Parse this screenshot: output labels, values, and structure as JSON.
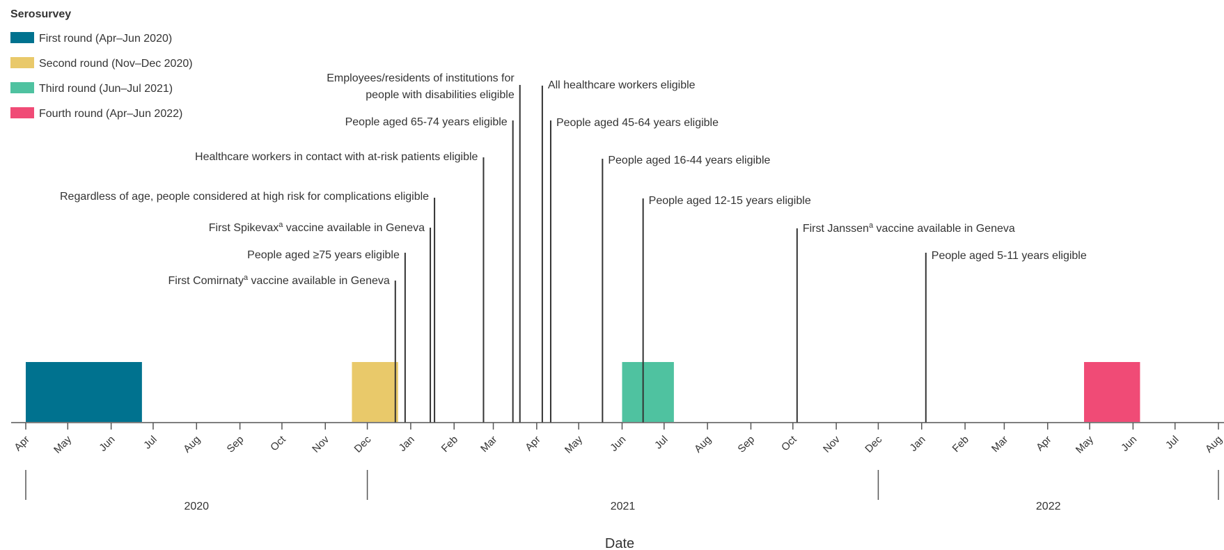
{
  "chart_data": {
    "type": "timeline",
    "xlabel": "Date",
    "legend": {
      "title": "Serosurvey",
      "placement": "top-left",
      "items": [
        {
          "label": "First round (Apr–Jun 2020)",
          "color": "#00728f"
        },
        {
          "label": "Second round (Nov–Dec 2020)",
          "color": "#e9c96a"
        },
        {
          "label": "Third round (Jun–Jul 2021)",
          "color": "#4fc2a0"
        },
        {
          "label": "Fourth round (Apr–Jun 2022)",
          "color": "#f04b76"
        }
      ]
    },
    "x_range": [
      "2020-04-01",
      "2022-08-01"
    ],
    "month_ticks": [
      {
        "date": "2020-04-01",
        "label": "Apr"
      },
      {
        "date": "2020-05-01",
        "label": "May"
      },
      {
        "date": "2020-06-01",
        "label": "Jun"
      },
      {
        "date": "2020-07-01",
        "label": "Jul"
      },
      {
        "date": "2020-08-01",
        "label": "Aug"
      },
      {
        "date": "2020-09-01",
        "label": "Sep"
      },
      {
        "date": "2020-10-01",
        "label": "Oct"
      },
      {
        "date": "2020-11-01",
        "label": "Nov"
      },
      {
        "date": "2020-12-01",
        "label": "Dec"
      },
      {
        "date": "2021-01-01",
        "label": "Jan"
      },
      {
        "date": "2021-02-01",
        "label": "Feb"
      },
      {
        "date": "2021-03-01",
        "label": "Mar"
      },
      {
        "date": "2021-04-01",
        "label": "Apr"
      },
      {
        "date": "2021-05-01",
        "label": "May"
      },
      {
        "date": "2021-06-01",
        "label": "Jun"
      },
      {
        "date": "2021-07-01",
        "label": "Jul"
      },
      {
        "date": "2021-08-01",
        "label": "Aug"
      },
      {
        "date": "2021-09-01",
        "label": "Sep"
      },
      {
        "date": "2021-10-01",
        "label": "Oct"
      },
      {
        "date": "2021-11-01",
        "label": "Nov"
      },
      {
        "date": "2021-12-01",
        "label": "Dec"
      },
      {
        "date": "2022-01-01",
        "label": "Jan"
      },
      {
        "date": "2022-02-01",
        "label": "Feb"
      },
      {
        "date": "2022-03-01",
        "label": "Mar"
      },
      {
        "date": "2022-04-01",
        "label": "Apr"
      },
      {
        "date": "2022-05-01",
        "label": "May"
      },
      {
        "date": "2022-06-01",
        "label": "Jun"
      },
      {
        "date": "2022-07-01",
        "label": "Jul"
      },
      {
        "date": "2022-08-01",
        "label": "Aug"
      }
    ],
    "years": [
      {
        "label": "2020",
        "start": "2020-04-01",
        "end": "2020-12-01"
      },
      {
        "label": "2021",
        "start": "2020-12-01",
        "end": "2021-12-01"
      },
      {
        "label": "2022",
        "start": "2021-12-01",
        "end": "2022-08-01"
      }
    ],
    "rounds": [
      {
        "start": "2020-04-01",
        "end": "2020-06-23",
        "color": "#00728f"
      },
      {
        "start": "2020-11-20",
        "end": "2020-12-23",
        "color": "#e9c96a"
      },
      {
        "start": "2021-06-01",
        "end": "2021-07-08",
        "color": "#4fc2a0"
      },
      {
        "start": "2022-04-27",
        "end": "2022-06-06",
        "color": "#f04b76"
      }
    ],
    "events": [
      {
        "date": "2020-12-21",
        "text": "First Comirnaty",
        "sup": "a",
        "tail": " vaccine available in Geneva",
        "side": "left"
      },
      {
        "date": "2020-12-28",
        "text": "People aged ≥75 years eligible",
        "side": "left"
      },
      {
        "date": "2021-01-15",
        "text": "First Spikevax",
        "sup": "a",
        "tail": " vaccine available in Geneva",
        "side": "left"
      },
      {
        "date": "2021-01-18",
        "text": "Regardless of age, people considered at high risk for complications eligible",
        "side": "left"
      },
      {
        "date": "2021-02-22",
        "text": "Healthcare workers in contact with at-risk patients eligible",
        "side": "left"
      },
      {
        "date": "2021-03-15",
        "text": "People aged 65-74 years eligible",
        "side": "left"
      },
      {
        "date": "2021-03-20",
        "text": "Employees/residents of institutions for people with disabilities eligible",
        "side": "left"
      },
      {
        "date": "2021-04-05",
        "text": "All healthcare workers eligible",
        "side": "right"
      },
      {
        "date": "2021-04-11",
        "text": "People aged 45-64 years eligible",
        "side": "right"
      },
      {
        "date": "2021-05-18",
        "text": "People aged 16-44 years eligible",
        "side": "right"
      },
      {
        "date": "2021-06-16",
        "text": "People aged 12-15 years eligible",
        "side": "right"
      },
      {
        "date": "2021-10-04",
        "text": "First Janssen",
        "sup": "a",
        "tail": " vaccine available in Geneva",
        "side": "right"
      },
      {
        "date": "2022-01-04",
        "text": "People aged 5-11 years eligible",
        "side": "right"
      }
    ]
  }
}
